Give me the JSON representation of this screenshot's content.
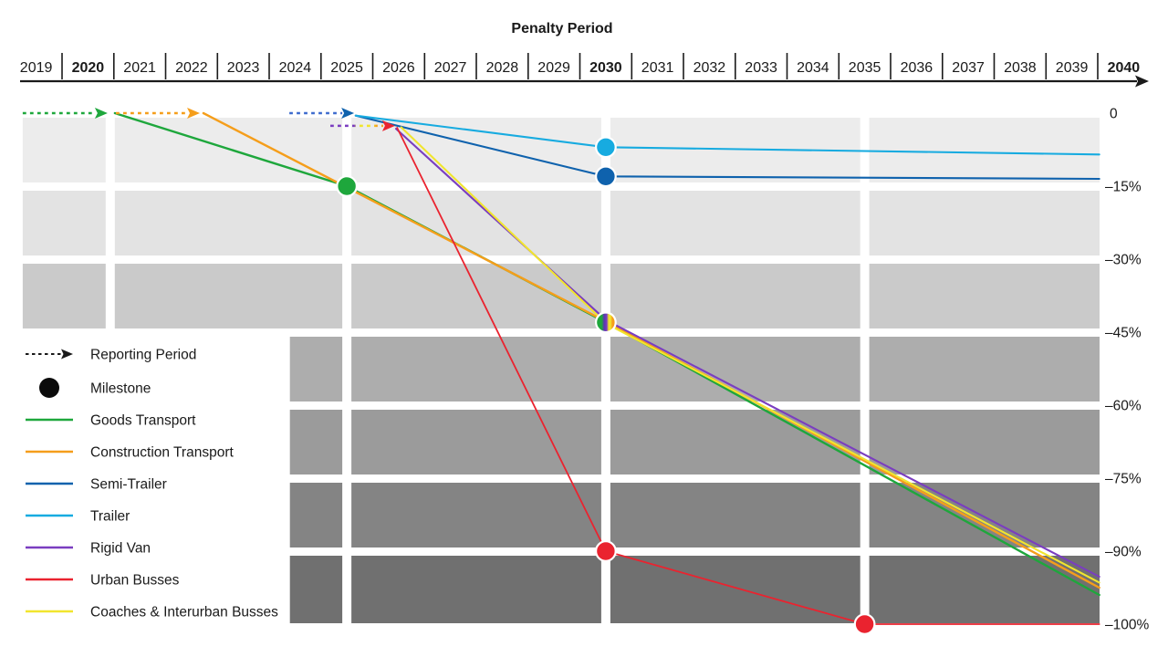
{
  "title": "Penalty Period",
  "colors": {
    "background": "#ffffff",
    "text": "#1a1a1a",
    "axis": "#1a1a1a",
    "milestone_ring": "#ffffff"
  },
  "chart_data": {
    "type": "line",
    "title": "Penalty Period",
    "x_axis": {
      "years": [
        2019,
        2020,
        2021,
        2022,
        2023,
        2024,
        2025,
        2026,
        2027,
        2028,
        2029,
        2030,
        2031,
        2032,
        2033,
        2034,
        2035,
        2036,
        2037,
        2038,
        2039,
        2040
      ],
      "bold_years": [
        2020,
        2030,
        2040
      ]
    },
    "y_axis": {
      "tick_labels": [
        "0",
        "–15%",
        "–30%",
        "–45%",
        "–60%",
        "–75%",
        "–90%",
        "–100%"
      ],
      "tick_values": [
        0,
        -15,
        -30,
        -45,
        -60,
        -75,
        -90,
        -100
      ],
      "scale_note": "rows equally spaced; bottom row spans only 10 percentage points"
    },
    "series": [
      {
        "name": "Goods Transport",
        "color": "#1EA73C",
        "points": [
          [
            2020.52,
            0
          ],
          [
            2025,
            -15
          ],
          [
            2030,
            -43
          ],
          [
            2039.53,
            -96
          ]
        ],
        "milestones": [
          [
            2025,
            -15
          ]
        ]
      },
      {
        "name": "Construction Transport",
        "color": "#F59E1B",
        "points": [
          [
            2022.23,
            0
          ],
          [
            2030,
            -42.8
          ],
          [
            2039.53,
            -95
          ]
        ],
        "milestones": []
      },
      {
        "name": "Semi-Trailer",
        "color": "#0F62AD",
        "points": [
          [
            2025.17,
            -0.5
          ],
          [
            2030,
            -13
          ],
          [
            2039.53,
            -13.5
          ]
        ],
        "milestones": [
          [
            2030,
            -13
          ]
        ]
      },
      {
        "name": "Trailer",
        "color": "#17ABE0",
        "points": [
          [
            2025.17,
            -0.5
          ],
          [
            2030,
            -7
          ],
          [
            2039.53,
            -8.5
          ]
        ],
        "milestones": [
          [
            2030,
            -7
          ]
        ]
      },
      {
        "name": "Rigid Van",
        "color": "#7A3DC0",
        "points": [
          [
            2025.95,
            -3.2
          ],
          [
            2030,
            -42.5
          ],
          [
            2039.53,
            -93.5
          ]
        ],
        "milestones": []
      },
      {
        "name": "Coaches & Interurban Busses",
        "color": "#F1E52E",
        "points": [
          [
            2026.05,
            -2.9
          ],
          [
            2030,
            -43.2
          ],
          [
            2039.53,
            -94.3
          ]
        ],
        "milestones": []
      },
      {
        "name": "Urban Busses",
        "color": "#EA232F",
        "points": [
          [
            2025.97,
            -3
          ],
          [
            2030,
            -90
          ],
          [
            2035,
            -100
          ],
          [
            2039.53,
            -100
          ]
        ],
        "milestones": [
          [
            2030,
            -90
          ],
          [
            2035,
            -100
          ]
        ]
      }
    ],
    "combined_milestone": {
      "year": 2030,
      "value": -43,
      "series": [
        "Goods Transport",
        "Construction Transport",
        "Rigid Van",
        "Coaches & Interurban Busses"
      ],
      "colors": [
        "#1EA73C",
        "#7A3DC0",
        "#F1E52E",
        "#F59E1B"
      ]
    },
    "reporting_arrows": [
      {
        "series": "Goods Transport",
        "dash_color": "#1EA73C",
        "head_color": "#1EA73C",
        "y_value": 0,
        "from_year": 2018.74,
        "to_year": 2020.38
      },
      {
        "series": "Construction Transport",
        "dash_color": "#F59E1B",
        "head_color": "#F59E1B",
        "y_value": 0,
        "from_year": 2020.54,
        "to_year": 2022.16
      },
      {
        "series": "Semi-Trailer / Trailer",
        "dash_color": "#3E6BCE",
        "head_color": "#0F62AD",
        "y_value": 0,
        "from_year": 2023.89,
        "to_year": 2025.14
      },
      {
        "series": "Rigid Van / Urban Busses / Coaches",
        "dash_color": "multi",
        "head_color": "#EA232F",
        "y_value": -2.6,
        "from_year": 2024.68,
        "to_year": 2025.93
      }
    ],
    "penalty_zones": {
      "row_values": [
        0,
        -15,
        -30,
        -45,
        -60,
        -75,
        -90,
        -100
      ],
      "row_colors": [
        "#ECECEC",
        "#E3E3E3",
        "#CACACA",
        "#ADADAD",
        "#9B9B9B",
        "#848484",
        "#707070"
      ],
      "rows_full_start_year": 2018.74,
      "rows_lower_start_year": 2023.9,
      "lower_rows_from_index": 3,
      "end_year": 2039.53,
      "gap_years": [
        2020.43,
        2025,
        2030,
        2035
      ]
    }
  },
  "legend": {
    "items": [
      {
        "label": "Reporting Period",
        "swatch": "dashed-arrow",
        "color": "#1a1a1a"
      },
      {
        "label": "Milestone",
        "swatch": "dot",
        "color": "#0b0b0b"
      },
      {
        "label": "Goods Transport",
        "swatch": "line",
        "color": "#1EA73C"
      },
      {
        "label": "Construction Transport",
        "swatch": "line",
        "color": "#F59E1B"
      },
      {
        "label": "Semi-Trailer",
        "swatch": "line",
        "color": "#0F62AD"
      },
      {
        "label": "Trailer",
        "swatch": "line",
        "color": "#17ABE0"
      },
      {
        "label": "Rigid Van",
        "swatch": "line",
        "color": "#7A3DC0"
      },
      {
        "label": "Urban Busses",
        "swatch": "line",
        "color": "#EA232F"
      },
      {
        "label": "Coaches & Interurban Busses",
        "swatch": "line",
        "color": "#F1E52E"
      }
    ]
  }
}
